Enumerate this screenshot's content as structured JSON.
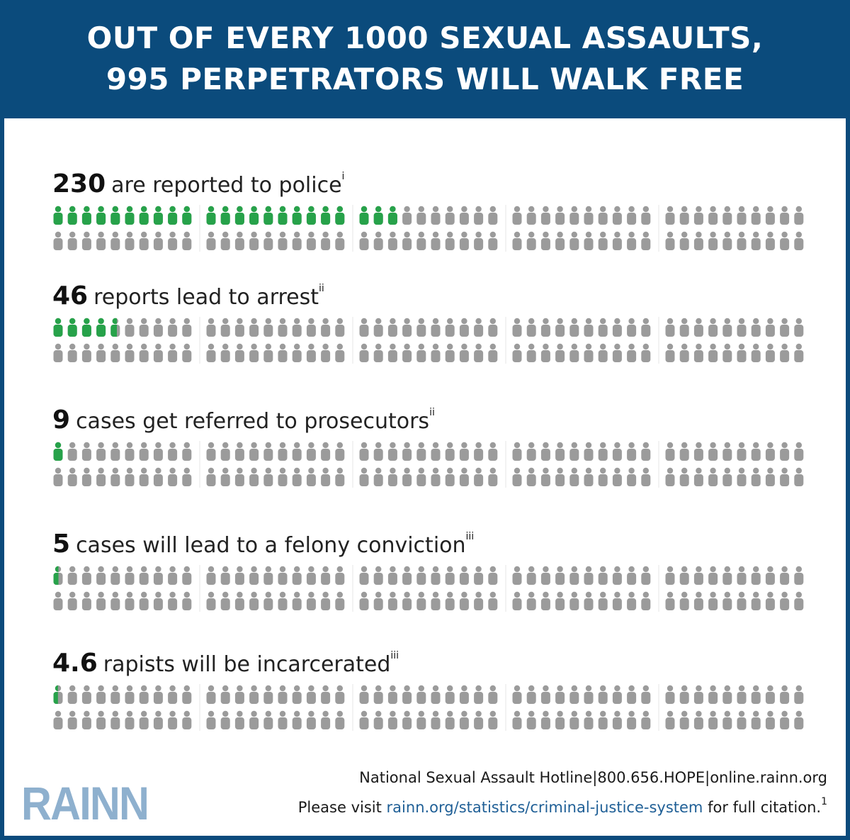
{
  "header": {
    "line1": "OUT OF EVERY 1000 SEXUAL ASSAULTS,",
    "line2": "995 PERPETRATORS WILL WALK FREE"
  },
  "colors": {
    "highlight": "#27a24a",
    "neutral": "#9b9b9b",
    "banner": "#0b4b7c",
    "logo": "#8eb0ce",
    "link": "#1f5f96"
  },
  "chart_data": {
    "type": "pictograph",
    "total": 100,
    "icons_per_row": 2,
    "groups": 5,
    "rows": [
      {
        "value": 230,
        "value_label": "230",
        "text": "are reported to police",
        "note": "i"
      },
      {
        "value": 46,
        "value_label": "46",
        "text": "reports lead to arrest",
        "note": "ii"
      },
      {
        "value": 9,
        "value_label": "9",
        "text": "cases get referred to prosecutors",
        "note": "ii"
      },
      {
        "value": 5,
        "value_label": "5",
        "text": "cases will lead to a felony conviction",
        "note": "iii"
      },
      {
        "value": 4.6,
        "value_label": "4.6",
        "text": "rapists will be incarcerated",
        "note": "iii"
      }
    ]
  },
  "footer": {
    "hotline": "National Sexual Assault Hotline|800.656.HOPE|online.rainn.org",
    "visit_prefix": "Please visit",
    "visit_link": "rainn.org/statistics/criminal-justice-system",
    "visit_suffix": "for full citation.",
    "footnote": "1",
    "logo": "RAINN"
  }
}
